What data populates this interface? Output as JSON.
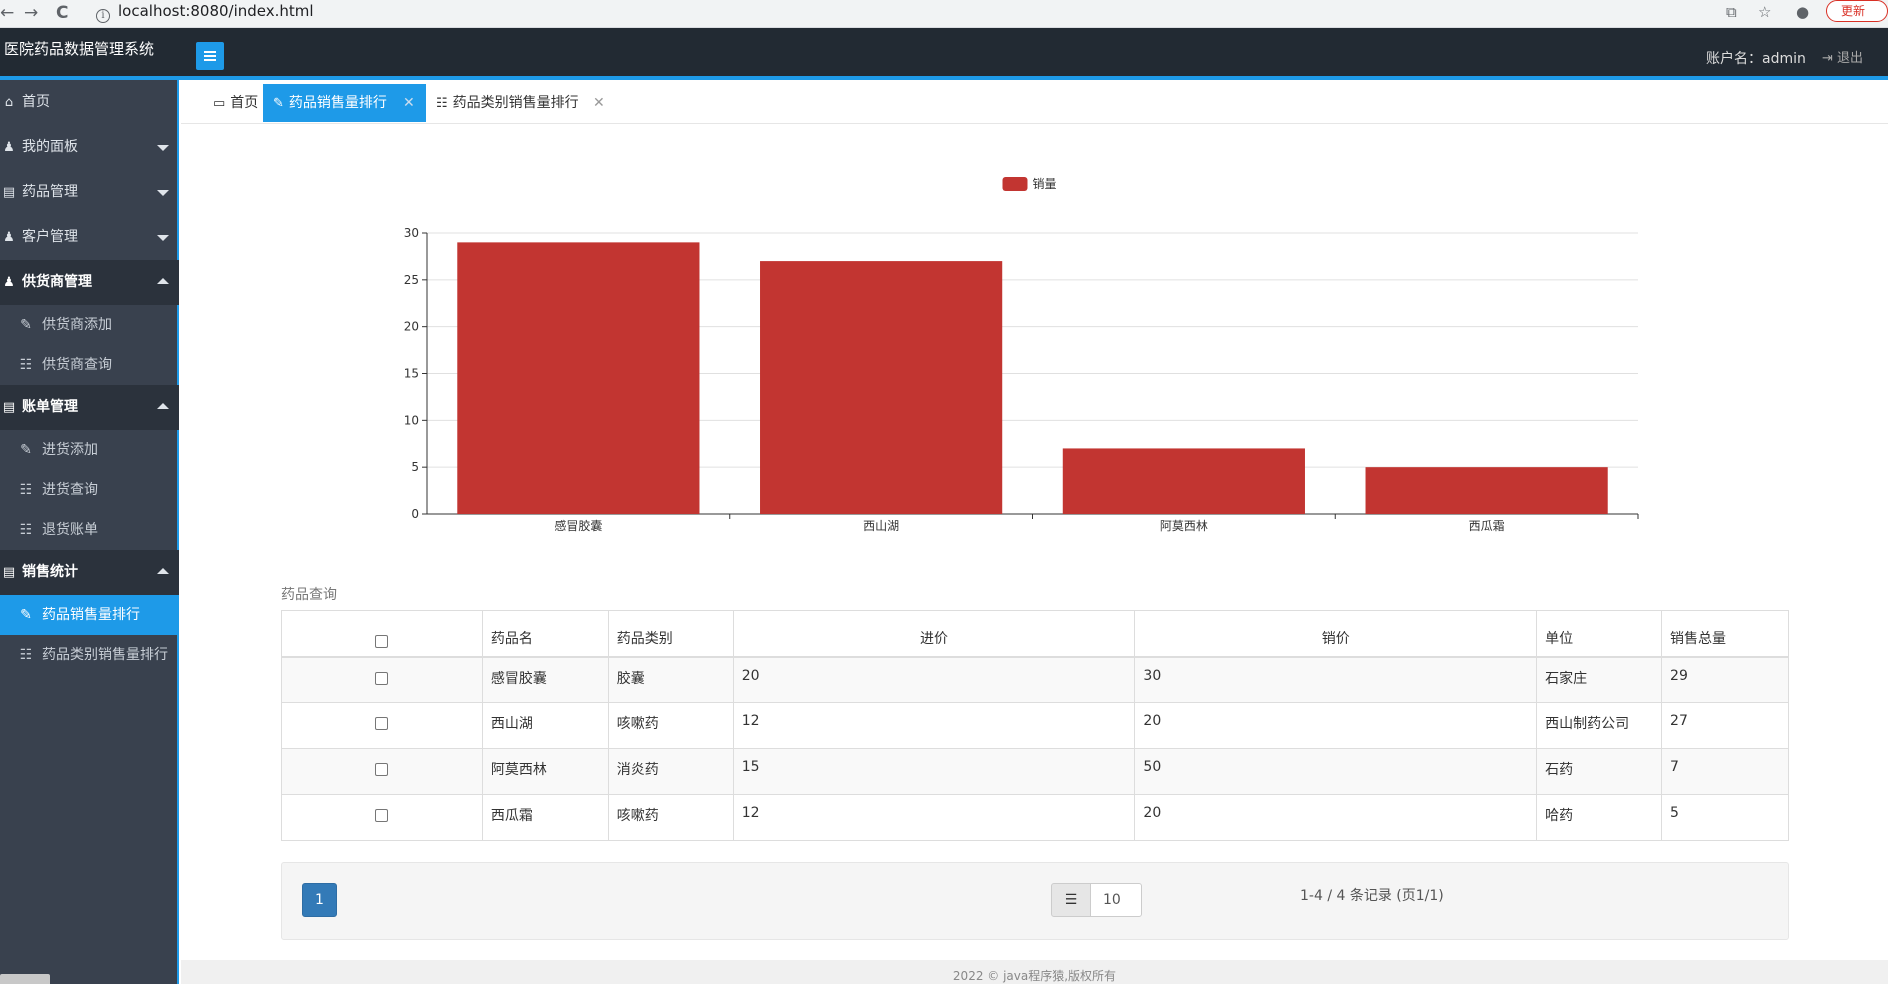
{
  "browser": {
    "back": "←",
    "forward": "→",
    "reload": "C",
    "url": "localhost:8080/index.html",
    "update_label": "更新"
  },
  "header": {
    "app_title": "医院药品数据管理系统",
    "account_label": "账户名：admin",
    "logout_label": "退出"
  },
  "sidebar": {
    "home": "首页",
    "my_panel": "我的面板",
    "drug_mgmt": "药品管理",
    "customer_mgmt": "客户管理",
    "supplier_mgmt": "供货商管理",
    "supplier_add": "供货商添加",
    "supplier_query": "供货商查询",
    "bill_mgmt": "账单管理",
    "purchase_add": "进货添加",
    "purchase_query": "进货查询",
    "return_bill": "退货账单",
    "sales_stats": "销售统计",
    "drug_sales_rank": "药品销售量排行",
    "category_sales_rank": "药品类别销售量排行"
  },
  "tabs": [
    {
      "label": "首页"
    },
    {
      "label": "药品销售量排行"
    },
    {
      "label": "药品类别销售量排行"
    }
  ],
  "chart_data": {
    "type": "bar",
    "categories": [
      "感冒胶囊",
      "西山湖",
      "阿莫西林",
      "西瓜霜"
    ],
    "series": [
      {
        "name": "销量",
        "values": [
          29,
          27,
          7,
          5
        ]
      }
    ],
    "ylim": [
      0,
      30
    ],
    "yticks": [
      0,
      5,
      10,
      15,
      20,
      25,
      30
    ],
    "grid": true,
    "legend": "top-center",
    "color": "#c23531"
  },
  "table": {
    "title": "药品查询",
    "columns": [
      "药品名",
      "药品类别",
      "进价",
      "销价",
      "单位",
      "销售总量"
    ],
    "rows": [
      [
        "感冒胶囊",
        "胶囊",
        "20",
        "30",
        "石家庄",
        "29"
      ],
      [
        "西山湖",
        "咳嗽药",
        "12",
        "20",
        "西山制药公司",
        "27"
      ],
      [
        "阿莫西林",
        "消炎药",
        "15",
        "50",
        "石药",
        "7"
      ],
      [
        "西瓜霜",
        "咳嗽药",
        "12",
        "20",
        "哈药",
        "5"
      ]
    ]
  },
  "pager": {
    "current_page": "1",
    "page_size": "10",
    "info": "1-4 / 4 条记录 (页1/1)"
  },
  "footer": {
    "copyright": "2022 © java程序猿,版权所有"
  }
}
